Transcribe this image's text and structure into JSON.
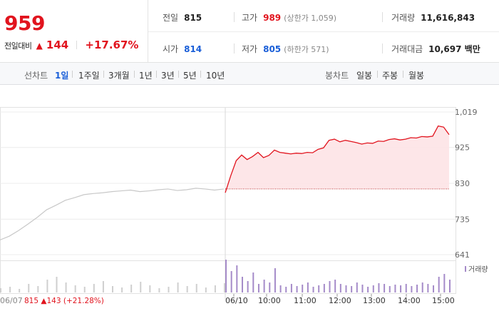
{
  "quote": {
    "price": "959",
    "change_label": "전일대비",
    "change_icon": "up-triangle",
    "change_value": "144",
    "change_rate": "+17.67%",
    "prev_close": {
      "label": "전일",
      "value": "815"
    },
    "high": {
      "label": "고가",
      "value": "989",
      "limit": "(상한가 1,059)"
    },
    "volume": {
      "label": "거래량",
      "value": "11,616,843"
    },
    "open": {
      "label": "시가",
      "value": "814"
    },
    "low": {
      "label": "저가",
      "value": "805",
      "limit": "(하한가 571)"
    },
    "trade_amount": {
      "label": "거래대금",
      "value": "10,697 백만"
    }
  },
  "toolbar": {
    "line_label": "선차트",
    "periods": [
      "1일",
      "1주일",
      "3개월",
      "1년",
      "3년",
      "5년",
      "10년"
    ],
    "active_period": "1일",
    "candle_label": "봉차트",
    "candles": [
      "일봉",
      "주봉",
      "월봉"
    ]
  },
  "colors": {
    "up": "#e1141e",
    "down": "#1a5fd8",
    "prev_day_line": "#c8c8c8",
    "volume_today": "#a58bc9",
    "volume_prev": "#cfcfcf",
    "fill": "#fde3e5"
  },
  "chart_data": {
    "type": "line",
    "y_ticks": [
      "1,019",
      "925",
      "830",
      "735",
      "641"
    ],
    "ylim": [
      641,
      1019
    ],
    "reference_line": 815,
    "x_labels": [
      "06/07",
      "06/10",
      "10:00",
      "11:00",
      "12:00",
      "13:00",
      "14:00",
      "15:00"
    ],
    "prev_day_summary": {
      "date": "06/07",
      "close": "815",
      "icon": "up-triangle",
      "change": "143",
      "rate": "(+21.28%)"
    },
    "volume_legend": "거래량",
    "prev_day": {
      "name": "06/07",
      "values": [
        680,
        690,
        705,
        722,
        740,
        760,
        772,
        785,
        792,
        800,
        803,
        805,
        808,
        810,
        812,
        808,
        810,
        813,
        815,
        811,
        813,
        817,
        815,
        812,
        815
      ]
    },
    "today": {
      "name": "06/10",
      "values": [
        805,
        850,
        890,
        905,
        893,
        901,
        912,
        898,
        904,
        918,
        912,
        910,
        908,
        910,
        909,
        912,
        911,
        920,
        924,
        944,
        947,
        940,
        944,
        941,
        938,
        934,
        937,
        936,
        942,
        941,
        946,
        948,
        945,
        947,
        951,
        950,
        954,
        953,
        955,
        982,
        979,
        959
      ]
    },
    "volume_prev": [
      6,
      8,
      5,
      12,
      9,
      18,
      22,
      14,
      10,
      8,
      12,
      16,
      9,
      7,
      11,
      15,
      10,
      6,
      8,
      14,
      9,
      12,
      7,
      10,
      13
    ],
    "volume_today": [
      46,
      30,
      38,
      22,
      16,
      28,
      12,
      18,
      14,
      34,
      10,
      8,
      12,
      9,
      11,
      14,
      8,
      10,
      12,
      16,
      18,
      12,
      10,
      9,
      14,
      11,
      8,
      10,
      13,
      12,
      9,
      11,
      10,
      12,
      9,
      11,
      14,
      12,
      10,
      22,
      26,
      18
    ]
  }
}
